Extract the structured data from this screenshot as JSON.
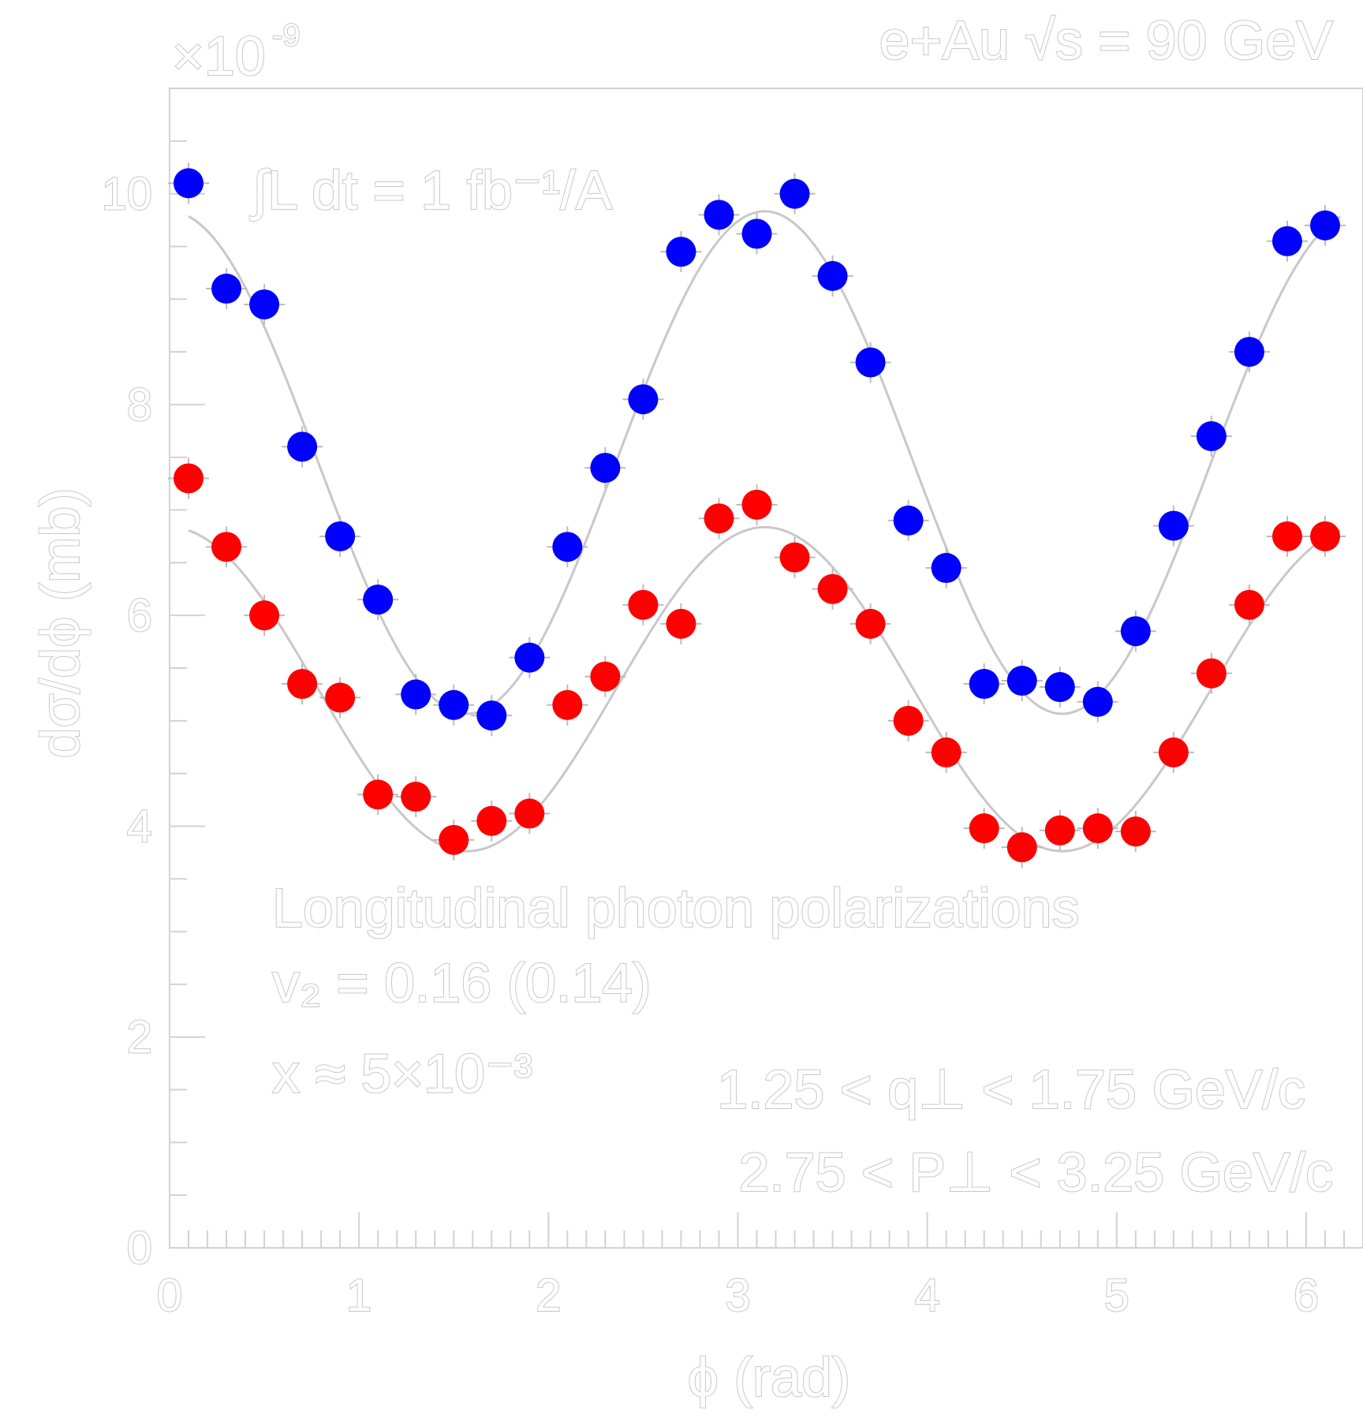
{
  "chart_data": {
    "type": "scatter",
    "title": "e+Au √s = 90 GeV",
    "xlabel": "ϕ (rad)",
    "ylabel": "dσ/dϕ (mb)",
    "y_multiplier": "×10",
    "y_multiplier_exp": "-9",
    "xlim": [
      0,
      6.3
    ],
    "ylim": [
      0,
      11
    ],
    "x_ticks": [
      "0",
      "1",
      "2",
      "3",
      "4",
      "5",
      "6"
    ],
    "y_ticks": [
      "0",
      "2",
      "4",
      "6",
      "8",
      "10"
    ],
    "annotations": {
      "lumi": "∫L dt = 1 fb⁻¹/A",
      "polarization": "Longitudinal photon polarizations",
      "v2": "v₂ = 0.16 (0.14)",
      "x": "x ≈ 5×10⁻³",
      "qt": "1.25 < q⊥ < 1.75 GeV/c",
      "pt": "2.75 < P⊥ < 3.25 GeV/c"
    },
    "series": [
      {
        "color": "#0000ff",
        "x": [
          0.1,
          0.3,
          0.5,
          0.7,
          0.9,
          1.1,
          1.3,
          1.5,
          1.7,
          1.9,
          2.1,
          2.3,
          2.5,
          2.7,
          2.9,
          3.1,
          3.3,
          3.5,
          3.7,
          3.9,
          4.1,
          4.3,
          4.5,
          4.7,
          4.9,
          5.1,
          5.3,
          5.5,
          5.7,
          5.9,
          6.1
        ],
        "values": [
          10.1,
          9.1,
          8.95,
          7.6,
          6.75,
          6.15,
          5.25,
          5.15,
          5.05,
          5.6,
          6.65,
          7.4,
          8.05,
          9.45,
          9.8,
          9.62,
          10.0,
          9.22,
          8.4,
          6.9,
          6.45,
          5.35,
          5.38,
          5.32,
          5.18,
          5.85,
          6.85,
          7.7,
          8.5,
          9.55,
          9.7
        ]
      },
      {
        "color": "#ff0000",
        "x": [
          0.1,
          0.3,
          0.5,
          0.7,
          0.9,
          1.1,
          1.3,
          1.5,
          1.7,
          1.9,
          2.1,
          2.3,
          2.5,
          2.7,
          2.9,
          3.1,
          3.3,
          3.5,
          3.7,
          3.9,
          4.1,
          4.3,
          4.5,
          4.7,
          4.9,
          5.1,
          5.3,
          5.5,
          5.7,
          5.9,
          6.1
        ],
        "values": [
          7.3,
          6.65,
          6.0,
          5.35,
          5.22,
          4.3,
          4.28,
          3.87,
          4.05,
          4.12,
          5.15,
          5.42,
          6.1,
          5.92,
          6.92,
          7.05,
          6.55,
          6.25,
          5.92,
          5.0,
          4.7,
          3.98,
          3.8,
          3.96,
          3.98,
          3.95,
          4.7,
          5.45,
          6.1,
          6.75,
          6.75
        ]
      }
    ],
    "fits": [
      {
        "series": 0,
        "mean": 7.45,
        "v2": 0.32
      },
      {
        "series": 1,
        "mean": 5.3,
        "v2": 0.29
      }
    ]
  }
}
